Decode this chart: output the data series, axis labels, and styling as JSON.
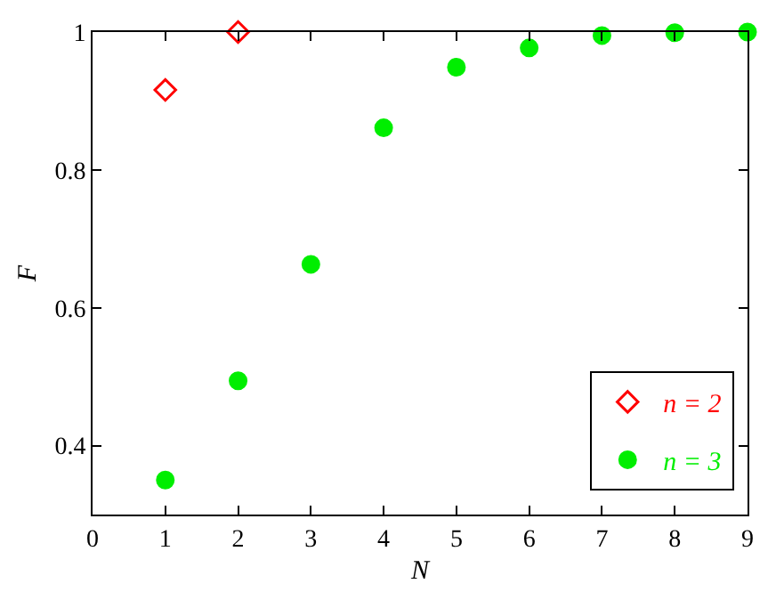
{
  "chart_data": {
    "type": "scatter",
    "xlabel": "N",
    "ylabel": "F",
    "xlim": [
      0,
      9
    ],
    "xticks": [
      0,
      1,
      2,
      3,
      4,
      5,
      6,
      7,
      8,
      9
    ],
    "ylim": [
      0.3,
      1
    ],
    "yticks": [
      0.4,
      0.6,
      0.8,
      1
    ],
    "legend": "bottom right",
    "series": [
      {
        "name": "n = 2",
        "color": "#ff0000",
        "marker": "diamond-open",
        "x": [
          1,
          2
        ],
        "values": [
          0.916,
          1.0
        ]
      },
      {
        "name": "n = 3",
        "color": "#00ee00",
        "marker": "circle",
        "x": [
          1,
          2,
          3,
          4,
          5,
          6,
          7,
          8,
          9
        ],
        "values": [
          0.35,
          0.494,
          0.663,
          0.861,
          0.949,
          0.977,
          0.995,
          0.999,
          1.0
        ]
      }
    ]
  }
}
